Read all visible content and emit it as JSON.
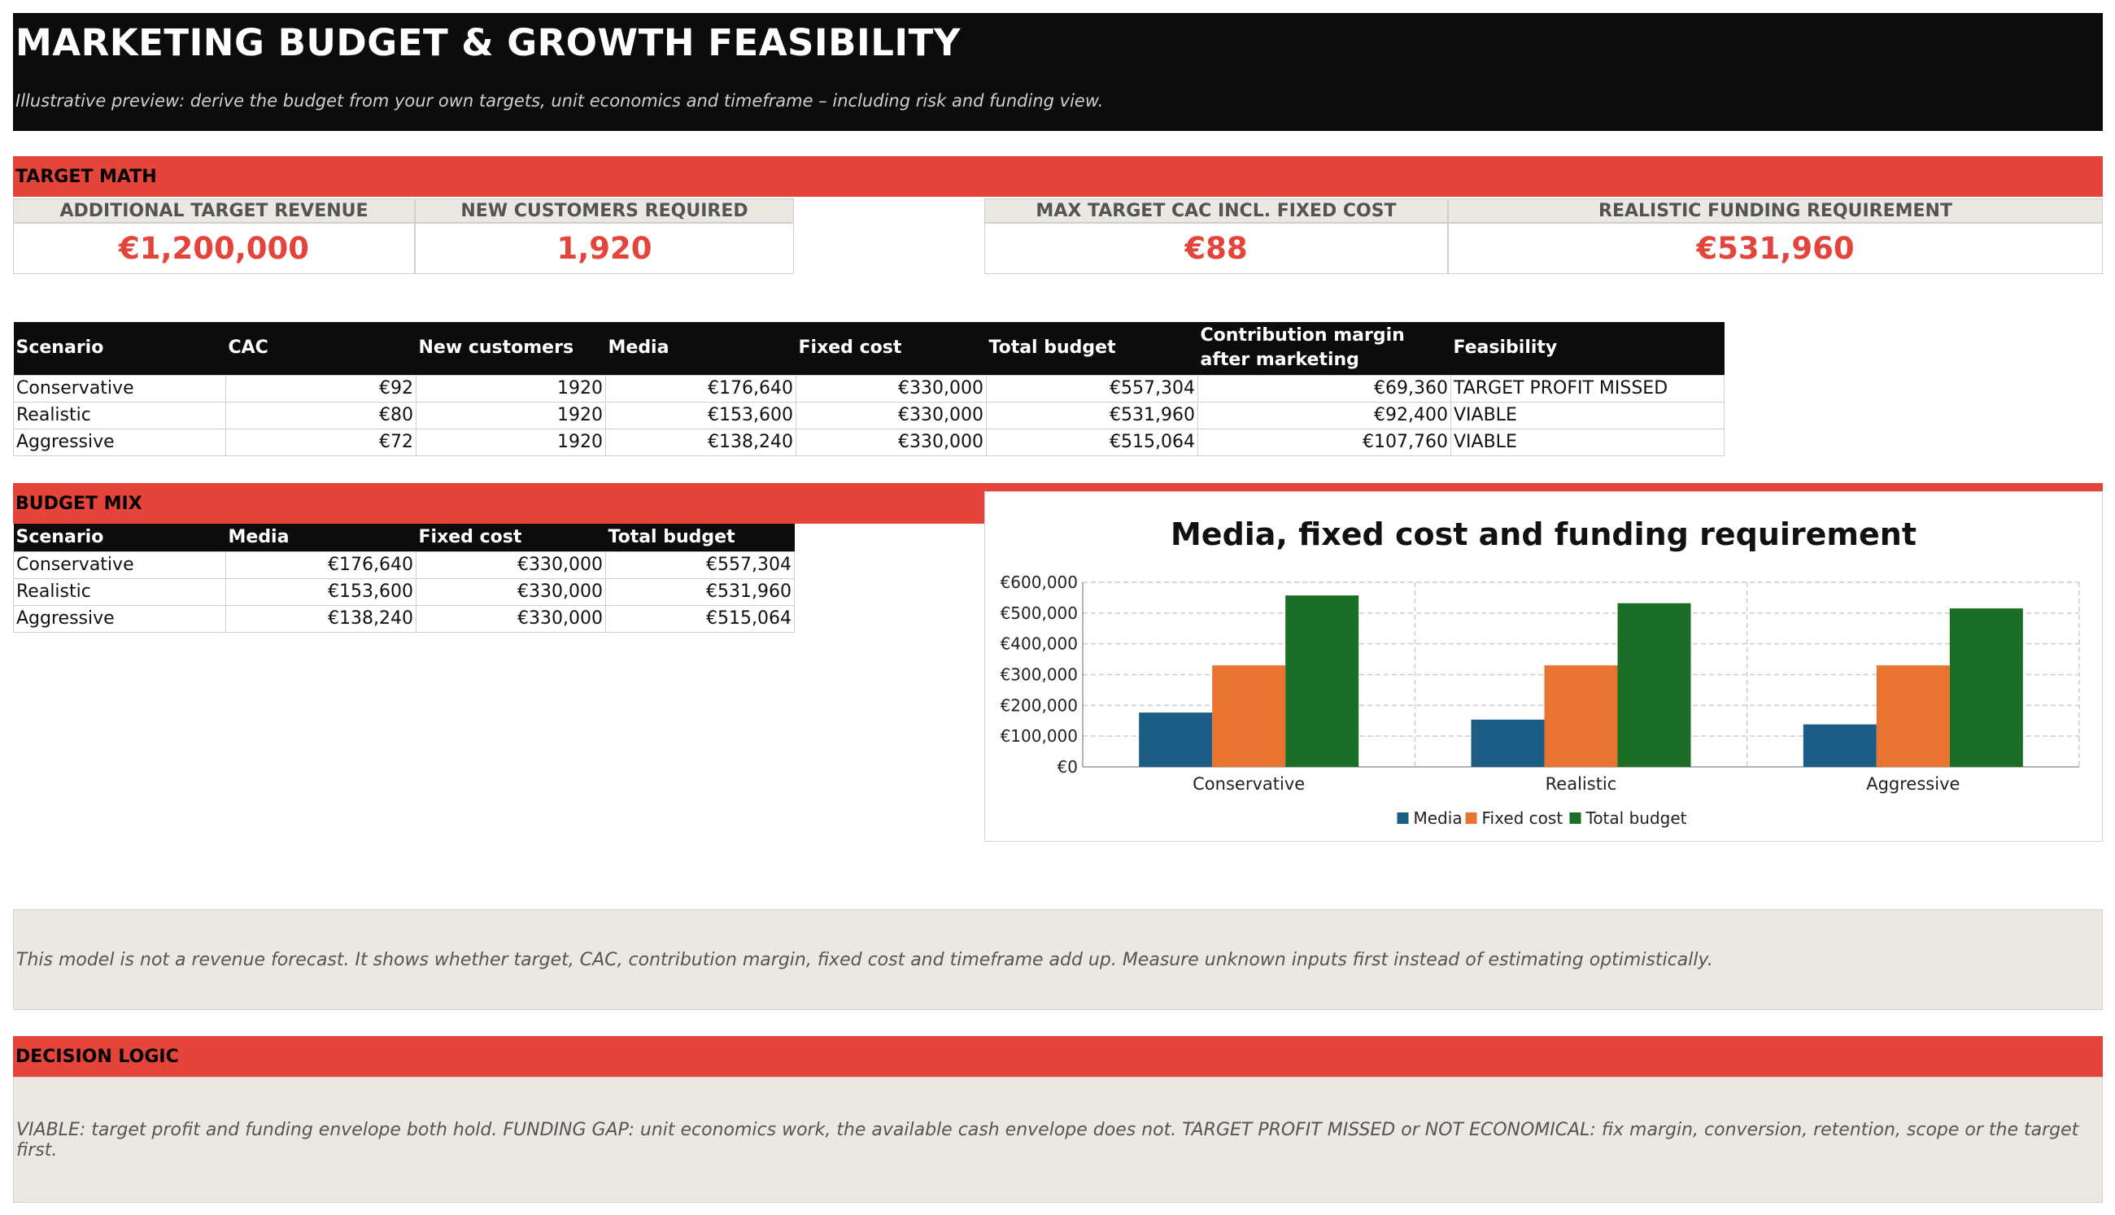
{
  "header": {
    "title": "MARKETING BUDGET & GROWTH FEASIBILITY",
    "subtitle": "Illustrative preview: derive the budget from your own targets, unit economics and timeframe – including risk and funding view."
  },
  "target_math": {
    "section_label": "TARGET MATH",
    "kpis": [
      {
        "label": "ADDITIONAL TARGET REVENUE",
        "value": "€1,200,000"
      },
      {
        "label": "NEW CUSTOMERS REQUIRED",
        "value": "1,920"
      },
      {
        "label": "MAX TARGET CAC INCL. FIXED COST",
        "value": "€88"
      },
      {
        "label": "REALISTIC FUNDING REQUIREMENT",
        "value": "€531,960"
      }
    ]
  },
  "scenario_table": {
    "headers": [
      "Scenario",
      "CAC",
      "New customers",
      "Media",
      "Fixed cost",
      "Total budget",
      "Contribution margin after marketing",
      "Feasibility"
    ],
    "rows": [
      [
        "Conservative",
        "€92",
        "1920",
        "€176,640",
        "€330,000",
        "€557,304",
        "€69,360",
        "TARGET PROFIT MISSED"
      ],
      [
        "Realistic",
        "€80",
        "1920",
        "€153,600",
        "€330,000",
        "€531,960",
        "€92,400",
        "VIABLE"
      ],
      [
        "Aggressive",
        "€72",
        "1920",
        "€138,240",
        "€330,000",
        "€515,064",
        "€107,760",
        "VIABLE"
      ]
    ]
  },
  "budget_mix": {
    "section_label": "BUDGET MIX",
    "headers": [
      "Scenario",
      "Media",
      "Fixed cost",
      "Total budget"
    ],
    "rows": [
      [
        "Conservative",
        "€176,640",
        "€330,000",
        "€557,304"
      ],
      [
        "Realistic",
        "€153,600",
        "€330,000",
        "€531,960"
      ],
      [
        "Aggressive",
        "€138,240",
        "€330,000",
        "€515,064"
      ]
    ]
  },
  "chart_data": {
    "type": "bar",
    "title": "Media, fixed cost and funding requirement",
    "categories": [
      "Conservative",
      "Realistic",
      "Aggressive"
    ],
    "series": [
      {
        "name": "Media",
        "values": [
          176640,
          153600,
          138240
        ],
        "color": "#1c5d86"
      },
      {
        "name": "Fixed cost",
        "values": [
          330000,
          330000,
          330000
        ],
        "color": "#e8742f"
      },
      {
        "name": "Total budget",
        "values": [
          557304,
          531960,
          515064
        ],
        "color": "#1a6e25"
      }
    ],
    "ylim": [
      0,
      600000
    ],
    "yticks": [
      0,
      100000,
      200000,
      300000,
      400000,
      500000,
      600000
    ],
    "ytick_labels": [
      "€0",
      "€100,000",
      "€200,000",
      "€300,000",
      "€400,000",
      "€500,000",
      "€600,000"
    ],
    "grid": true,
    "legend_position": "bottom"
  },
  "note": "This model is not a revenue forecast. It shows whether target, CAC, contribution margin, fixed cost and timeframe add up. Measure unknown inputs first instead of estimating optimistically.",
  "decision_logic": {
    "section_label": "DECISION LOGIC",
    "text": "VIABLE: target profit and funding envelope both hold. FUNDING GAP: unit economics work, the available cash envelope does not. TARGET PROFIT MISSED or NOT ECONOMICAL: fix margin, conversion, retention, scope or the target first."
  }
}
